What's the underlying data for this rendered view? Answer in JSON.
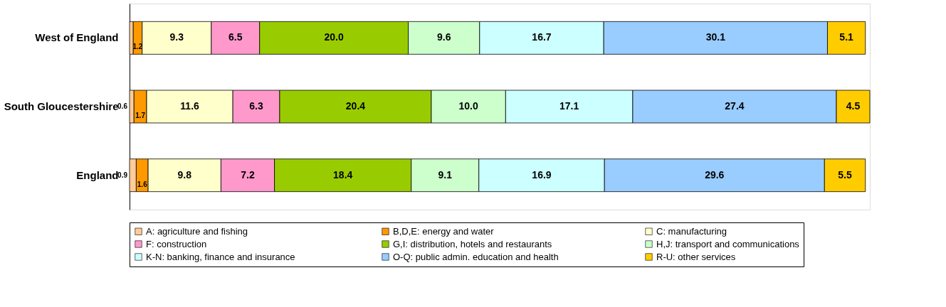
{
  "chart_data": {
    "type": "bar",
    "orientation": "horizontal",
    "stacked": true,
    "legend": "bottom",
    "categories": [
      "West of England",
      "South Gloucestershire",
      "England"
    ],
    "series": [
      {
        "name": "A: agriculture and fishing",
        "color": "#ffcc99",
        "values": [
          0.5,
          0.6,
          0.9
        ],
        "value_labels": [
          null,
          "0.6",
          "0.9"
        ]
      },
      {
        "name": "B,D,E: energy and water",
        "color": "#ff9900",
        "values": [
          1.2,
          1.7,
          1.6
        ],
        "value_labels": [
          "1.2",
          "1.7",
          "1.6"
        ]
      },
      {
        "name": "C: manufacturing",
        "color": "#ffffcc",
        "values": [
          9.3,
          11.6,
          9.8
        ],
        "value_labels": [
          "9.3",
          "11.6",
          "9.8"
        ]
      },
      {
        "name": "F: construction",
        "color": "#ff99cc",
        "values": [
          6.5,
          6.3,
          7.2
        ],
        "value_labels": [
          "6.5",
          "6.3",
          "7.2"
        ]
      },
      {
        "name": "G,I: distribution, hotels and restaurants",
        "color": "#99cc00",
        "values": [
          20.0,
          20.4,
          18.4
        ],
        "value_labels": [
          "20.0",
          "20.4",
          "18.4"
        ]
      },
      {
        "name": "H,J: transport and communications",
        "color": "#ccffcc",
        "values": [
          9.6,
          10.0,
          9.1
        ],
        "value_labels": [
          "9.6",
          "10.0",
          "9.1"
        ]
      },
      {
        "name": "K-N: banking, finance and insurance",
        "color": "#ccffff",
        "values": [
          16.7,
          17.1,
          16.9
        ],
        "value_labels": [
          "16.7",
          "17.1",
          "16.9"
        ]
      },
      {
        "name": "O-Q: public admin. education and health",
        "color": "#99ccff",
        "values": [
          30.1,
          27.4,
          29.6
        ],
        "value_labels": [
          "30.1",
          "27.4",
          "29.6"
        ]
      },
      {
        "name": "R-U: other services",
        "color": "#ffcc00",
        "values": [
          5.1,
          4.5,
          5.5
        ],
        "value_labels": [
          "5.1",
          "4.5",
          "5.5"
        ]
      }
    ]
  }
}
